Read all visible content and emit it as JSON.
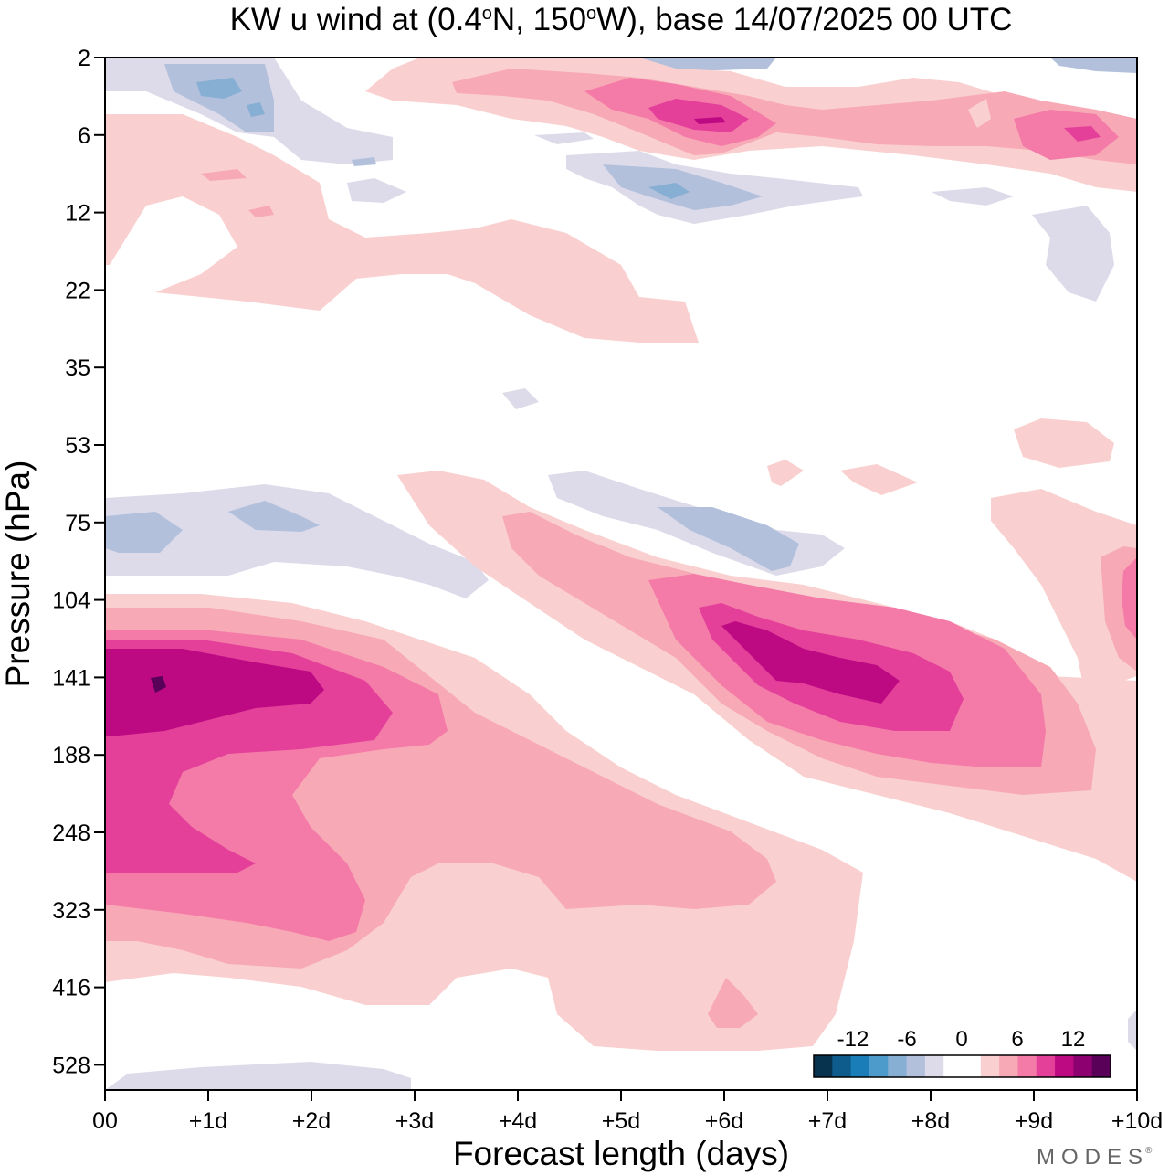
{
  "chart_data": {
    "type": "heatmap",
    "title_parts": {
      "prefix": "KW u wind at (0.4",
      "deg1": "o",
      "mid": "N, 150",
      "deg2": "o",
      "suffix": "W),  base 14/07/2025  00 UTC"
    },
    "xlabel": "Forecast length (days)",
    "ylabel": "Pressure (hPa)",
    "x_ticks": [
      "00",
      "+1d",
      "+2d",
      "+3d",
      "+4d",
      "+5d",
      "+6d",
      "+7d",
      "+8d",
      "+9d",
      "+10d"
    ],
    "x_range_days": [
      0,
      10
    ],
    "y_ticks_hPa": [
      "2",
      "6",
      "12",
      "22",
      "35",
      "53",
      "75",
      "104",
      "141",
      "188",
      "248",
      "323",
      "416",
      "528"
    ],
    "y_range_hPa": [
      2,
      650
    ],
    "colorbar": {
      "tick_labels": [
        "-12",
        "-6",
        "0",
        "6",
        "12"
      ],
      "levels": [
        -16,
        -14,
        -12,
        -10,
        -8,
        -6,
        -4,
        -2,
        0,
        2,
        4,
        6,
        8,
        10,
        12,
        14,
        16
      ],
      "colors": [
        "#08334f",
        "#0d5c8c",
        "#1a7db8",
        "#4d9bca",
        "#87aed3",
        "#b2c0dc",
        "#dddbea",
        "#ffffff",
        "#ffffff",
        "#f9d0cf",
        "#f8a9b6",
        "#f47ba8",
        "#e4409a",
        "#bd0a82",
        "#8c0070",
        "#590058"
      ]
    },
    "brand": "MODES"
  },
  "colors": {
    "neg1": "#dddbea",
    "neg2": "#b2c0dc",
    "neg3": "#87aed3",
    "neg4": "#4d9bca",
    "pos1": "#f9d0cf",
    "pos2": "#f8a9b6",
    "pos3": "#f47ba8",
    "pos4": "#e4409a",
    "pos5": "#bd0a82",
    "pos6": "#590058"
  }
}
